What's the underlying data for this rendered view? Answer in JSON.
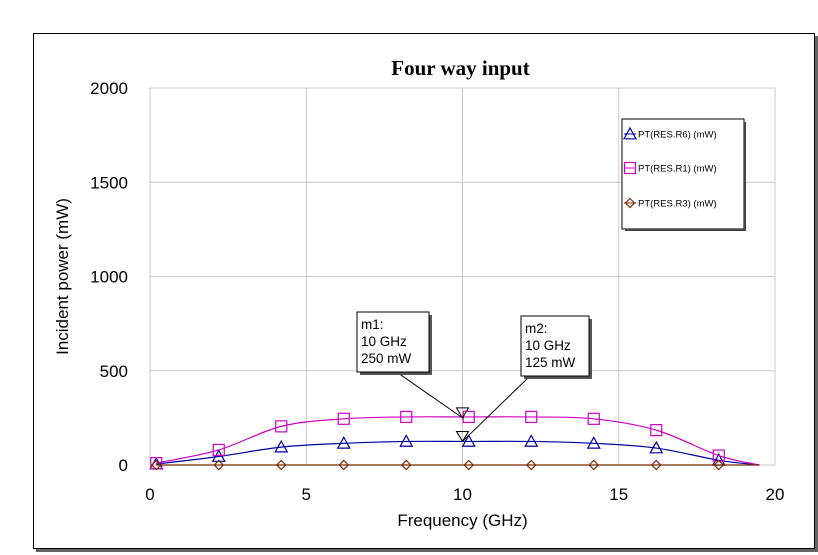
{
  "chart_data": {
    "type": "line",
    "title": "Four way input",
    "xlabel": "Frequency (GHz)",
    "ylabel": "Incident power (mW)",
    "xlim": [
      0,
      20
    ],
    "ylim": [
      0,
      2000
    ],
    "x_ticks": [
      0,
      5,
      10,
      15,
      20
    ],
    "y_ticks": [
      0,
      500,
      1000,
      1500,
      2000
    ],
    "x_tick_labels": [
      "0",
      "5",
      "10",
      "15",
      "20"
    ],
    "y_tick_labels": [
      "0",
      "500",
      "1000",
      "1500",
      "2000"
    ],
    "grid": true,
    "legend_position": "top-right",
    "series": [
      {
        "name": "PT(RES.R6) (mW)",
        "color": "#0000a0",
        "marker": "triangle",
        "x": [
          0.2,
          2.2,
          4.2,
          6.2,
          8.2,
          10.2,
          12.2,
          14.2,
          16.2,
          18.2,
          19.5
        ],
        "y": [
          5,
          45,
          95,
          115,
          125,
          125,
          125,
          115,
          90,
          25,
          0
        ]
      },
      {
        "name": "PT(RES.R1) (mW)",
        "color": "#d000c0",
        "marker": "square",
        "x": [
          0.2,
          2.2,
          4.2,
          6.2,
          8.2,
          10.2,
          12.2,
          14.2,
          16.2,
          18.2,
          19.5
        ],
        "y": [
          10,
          80,
          205,
          245,
          255,
          255,
          255,
          245,
          185,
          50,
          0
        ]
      },
      {
        "name": "PT(RES.R3) (mW)",
        "color": "#7a2a00",
        "marker": "diamond",
        "x": [
          0.2,
          2.2,
          4.2,
          6.2,
          8.2,
          10.2,
          12.2,
          14.2,
          16.2,
          18.2,
          19.5
        ],
        "y": [
          0,
          0,
          0,
          0,
          0,
          0,
          0,
          0,
          0,
          0,
          0
        ]
      }
    ],
    "markers": [
      {
        "name": "m1:",
        "lines": [
          "m1:",
          "10 GHz",
          "250 mW"
        ],
        "x": 10,
        "y": 250
      },
      {
        "name": "m2:",
        "lines": [
          "m2:",
          "10 GHz",
          "125 mW"
        ],
        "x": 10,
        "y": 125
      }
    ]
  }
}
